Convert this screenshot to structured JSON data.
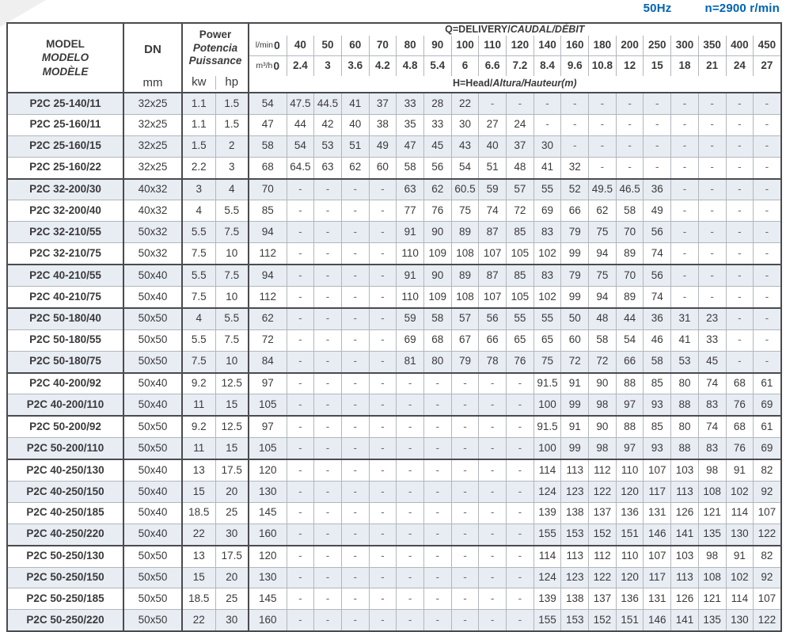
{
  "header_bar": {
    "frequency": "50Hz",
    "speed": "n=2900 r/min"
  },
  "table": {
    "left_header": {
      "model_lines": [
        "MODEL",
        "MODELO",
        "MODÈLE"
      ],
      "dn_label": "DN",
      "dn_unit": "mm",
      "power_lines": [
        "Power",
        "Potencia",
        "Puissance"
      ],
      "kw_label": "kw",
      "hp_label": "hp"
    },
    "flow_header": {
      "q_label": {
        "plain": "Q=DELIVERY/",
        "italic": "CAUDAL/DÉBIT"
      },
      "h_label": {
        "plain": "H=Head/",
        "italic": "Altura/Hauteur(m)"
      },
      "lmin_unit": "l/min",
      "m3h_unit": "m³/h",
      "lmin_values": [
        "0",
        "40",
        "50",
        "60",
        "70",
        "80",
        "90",
        "100",
        "110",
        "120",
        "140",
        "160",
        "180",
        "200",
        "250",
        "300",
        "350",
        "400",
        "450"
      ],
      "m3h_values": [
        "0",
        "2.4",
        "3",
        "3.6",
        "4.2",
        "4.8",
        "5.4",
        "6",
        "6.6",
        "7.2",
        "8.4",
        "9.6",
        "10.8",
        "12",
        "15",
        "18",
        "21",
        "24",
        "27"
      ]
    },
    "rows": [
      {
        "model": "P2C 25-140/11",
        "dn": "32x25",
        "kw": "1.1",
        "hp": "1.5",
        "shaded": true,
        "group_start": true,
        "head": [
          "54",
          "47.5",
          "44.5",
          "41",
          "37",
          "33",
          "28",
          "22",
          "-",
          "-",
          "-",
          "-",
          "-",
          "-",
          "-",
          "-",
          "-",
          "-",
          "-"
        ]
      },
      {
        "model": "P2C 25-160/11",
        "dn": "32x25",
        "kw": "1.1",
        "hp": "1.5",
        "shaded": false,
        "group_start": false,
        "head": [
          "47",
          "44",
          "42",
          "40",
          "38",
          "35",
          "33",
          "30",
          "27",
          "24",
          "-",
          "-",
          "-",
          "-",
          "-",
          "-",
          "-",
          "-",
          "-"
        ]
      },
      {
        "model": "P2C 25-160/15",
        "dn": "32x25",
        "kw": "1.5",
        "hp": "2",
        "shaded": true,
        "group_start": false,
        "head": [
          "58",
          "54",
          "53",
          "51",
          "49",
          "47",
          "45",
          "43",
          "40",
          "37",
          "30",
          "-",
          "-",
          "-",
          "-",
          "-",
          "-",
          "-",
          "-"
        ]
      },
      {
        "model": "P2C 25-160/22",
        "dn": "32x25",
        "kw": "2.2",
        "hp": "3",
        "shaded": false,
        "group_start": false,
        "head": [
          "68",
          "64.5",
          "63",
          "62",
          "60",
          "58",
          "56",
          "54",
          "51",
          "48",
          "41",
          "32",
          "-",
          "-",
          "-",
          "-",
          "-",
          "-",
          "-"
        ]
      },
      {
        "model": "P2C 32-200/30",
        "dn": "40x32",
        "kw": "3",
        "hp": "4",
        "shaded": true,
        "group_start": true,
        "head": [
          "70",
          "-",
          "-",
          "-",
          "-",
          "63",
          "62",
          "60.5",
          "59",
          "57",
          "55",
          "52",
          "49.5",
          "46.5",
          "36",
          "-",
          "-",
          "-",
          "-"
        ]
      },
      {
        "model": "P2C 32-200/40",
        "dn": "40x32",
        "kw": "4",
        "hp": "5.5",
        "shaded": false,
        "group_start": false,
        "head": [
          "85",
          "-",
          "-",
          "-",
          "-",
          "77",
          "76",
          "75",
          "74",
          "72",
          "69",
          "66",
          "62",
          "58",
          "49",
          "-",
          "-",
          "-",
          "-"
        ]
      },
      {
        "model": "P2C 32-210/55",
        "dn": "50x32",
        "kw": "5.5",
        "hp": "7.5",
        "shaded": true,
        "group_start": false,
        "head": [
          "94",
          "-",
          "-",
          "-",
          "-",
          "91",
          "90",
          "89",
          "87",
          "85",
          "83",
          "79",
          "75",
          "70",
          "56",
          "-",
          "-",
          "-",
          "-"
        ]
      },
      {
        "model": "P2C 32-210/75",
        "dn": "50x32",
        "kw": "7.5",
        "hp": "10",
        "shaded": false,
        "group_start": false,
        "head": [
          "112",
          "-",
          "-",
          "-",
          "-",
          "110",
          "109",
          "108",
          "107",
          "105",
          "102",
          "99",
          "94",
          "89",
          "74",
          "-",
          "-",
          "-",
          "-"
        ]
      },
      {
        "model": "P2C 40-210/55",
        "dn": "50x40",
        "kw": "5.5",
        "hp": "7.5",
        "shaded": true,
        "group_start": true,
        "head": [
          "94",
          "-",
          "-",
          "-",
          "-",
          "91",
          "90",
          "89",
          "87",
          "85",
          "83",
          "79",
          "75",
          "70",
          "56",
          "-",
          "-",
          "-",
          "-"
        ]
      },
      {
        "model": "P2C 40-210/75",
        "dn": "50x40",
        "kw": "7.5",
        "hp": "10",
        "shaded": false,
        "group_start": false,
        "head": [
          "112",
          "-",
          "-",
          "-",
          "-",
          "110",
          "109",
          "108",
          "107",
          "105",
          "102",
          "99",
          "94",
          "89",
          "74",
          "-",
          "-",
          "-",
          "-"
        ]
      },
      {
        "model": "P2C 50-180/40",
        "dn": "50x50",
        "kw": "4",
        "hp": "5.5",
        "shaded": true,
        "group_start": true,
        "head": [
          "62",
          "-",
          "-",
          "-",
          "-",
          "59",
          "58",
          "57",
          "56",
          "55",
          "55",
          "50",
          "48",
          "44",
          "36",
          "31",
          "23",
          "-",
          "-"
        ]
      },
      {
        "model": "P2C 50-180/55",
        "dn": "50x50",
        "kw": "5.5",
        "hp": "7.5",
        "shaded": false,
        "group_start": false,
        "head": [
          "72",
          "-",
          "-",
          "-",
          "-",
          "69",
          "68",
          "67",
          "66",
          "65",
          "65",
          "60",
          "58",
          "54",
          "46",
          "41",
          "33",
          "-",
          "-"
        ]
      },
      {
        "model": "P2C 50-180/75",
        "dn": "50x50",
        "kw": "7.5",
        "hp": "10",
        "shaded": true,
        "group_start": false,
        "head": [
          "84",
          "-",
          "-",
          "-",
          "-",
          "81",
          "80",
          "79",
          "78",
          "76",
          "75",
          "72",
          "72",
          "66",
          "58",
          "53",
          "45",
          "-",
          "-"
        ]
      },
      {
        "model": "P2C 40-200/92",
        "dn": "50x40",
        "kw": "9.2",
        "hp": "12.5",
        "shaded": false,
        "group_start": true,
        "head": [
          "97",
          "-",
          "-",
          "-",
          "-",
          "-",
          "-",
          "-",
          "-",
          "-",
          "91.5",
          "91",
          "90",
          "88",
          "85",
          "80",
          "74",
          "68",
          "61"
        ]
      },
      {
        "model": "P2C 40-200/110",
        "dn": "50x40",
        "kw": "11",
        "hp": "15",
        "shaded": true,
        "group_start": false,
        "head": [
          "105",
          "-",
          "-",
          "-",
          "-",
          "-",
          "-",
          "-",
          "-",
          "-",
          "100",
          "99",
          "98",
          "97",
          "93",
          "88",
          "83",
          "76",
          "69"
        ]
      },
      {
        "model": "P2C 50-200/92",
        "dn": "50x50",
        "kw": "9.2",
        "hp": "12.5",
        "shaded": false,
        "group_start": true,
        "head": [
          "97",
          "-",
          "-",
          "-",
          "-",
          "-",
          "-",
          "-",
          "-",
          "-",
          "91.5",
          "91",
          "90",
          "88",
          "85",
          "80",
          "74",
          "68",
          "61"
        ]
      },
      {
        "model": "P2C 50-200/110",
        "dn": "50x50",
        "kw": "11",
        "hp": "15",
        "shaded": true,
        "group_start": false,
        "head": [
          "105",
          "-",
          "-",
          "-",
          "-",
          "-",
          "-",
          "-",
          "-",
          "-",
          "100",
          "99",
          "98",
          "97",
          "93",
          "88",
          "83",
          "76",
          "69"
        ]
      },
      {
        "model": "P2C 40-250/130",
        "dn": "50x40",
        "kw": "13",
        "hp": "17.5",
        "shaded": false,
        "group_start": true,
        "head": [
          "120",
          "-",
          "-",
          "-",
          "-",
          "-",
          "-",
          "-",
          "-",
          "-",
          "114",
          "113",
          "112",
          "110",
          "107",
          "103",
          "98",
          "91",
          "82"
        ]
      },
      {
        "model": "P2C 40-250/150",
        "dn": "50x40",
        "kw": "15",
        "hp": "20",
        "shaded": true,
        "group_start": false,
        "head": [
          "130",
          "-",
          "-",
          "-",
          "-",
          "-",
          "-",
          "-",
          "-",
          "-",
          "124",
          "123",
          "122",
          "120",
          "117",
          "113",
          "108",
          "102",
          "92"
        ]
      },
      {
        "model": "P2C 40-250/185",
        "dn": "50x40",
        "kw": "18.5",
        "hp": "25",
        "shaded": false,
        "group_start": false,
        "head": [
          "145",
          "-",
          "-",
          "-",
          "-",
          "-",
          "-",
          "-",
          "-",
          "-",
          "139",
          "138",
          "137",
          "136",
          "131",
          "126",
          "121",
          "114",
          "107"
        ]
      },
      {
        "model": "P2C 40-250/220",
        "dn": "50x40",
        "kw": "22",
        "hp": "30",
        "shaded": true,
        "group_start": false,
        "head": [
          "160",
          "-",
          "-",
          "-",
          "-",
          "-",
          "-",
          "-",
          "-",
          "-",
          "155",
          "153",
          "152",
          "151",
          "146",
          "141",
          "135",
          "130",
          "122"
        ]
      },
      {
        "model": "P2C 50-250/130",
        "dn": "50x50",
        "kw": "13",
        "hp": "17.5",
        "shaded": false,
        "group_start": true,
        "head": [
          "120",
          "-",
          "-",
          "-",
          "-",
          "-",
          "-",
          "-",
          "-",
          "-",
          "114",
          "113",
          "112",
          "110",
          "107",
          "103",
          "98",
          "91",
          "82"
        ]
      },
      {
        "model": "P2C 50-250/150",
        "dn": "50x50",
        "kw": "15",
        "hp": "20",
        "shaded": true,
        "group_start": false,
        "head": [
          "130",
          "-",
          "-",
          "-",
          "-",
          "-",
          "-",
          "-",
          "-",
          "-",
          "124",
          "123",
          "122",
          "120",
          "117",
          "113",
          "108",
          "102",
          "92"
        ]
      },
      {
        "model": "P2C 50-250/185",
        "dn": "50x50",
        "kw": "18.5",
        "hp": "25",
        "shaded": false,
        "group_start": false,
        "head": [
          "145",
          "-",
          "-",
          "-",
          "-",
          "-",
          "-",
          "-",
          "-",
          "-",
          "139",
          "138",
          "137",
          "136",
          "131",
          "126",
          "121",
          "114",
          "107"
        ]
      },
      {
        "model": "P2C 50-250/220",
        "dn": "50x50",
        "kw": "22",
        "hp": "30",
        "shaded": true,
        "group_start": false,
        "head": [
          "160",
          "-",
          "-",
          "-",
          "-",
          "-",
          "-",
          "-",
          "-",
          "-",
          "155",
          "153",
          "152",
          "151",
          "146",
          "141",
          "135",
          "130",
          "122"
        ]
      }
    ]
  },
  "colors": {
    "accent_blue": "#0063b1",
    "row_shade": "#e8ecf3",
    "border_dark": "#4b4b4f",
    "border_light": "#b2b6bd",
    "text": "#3a3a3c"
  }
}
